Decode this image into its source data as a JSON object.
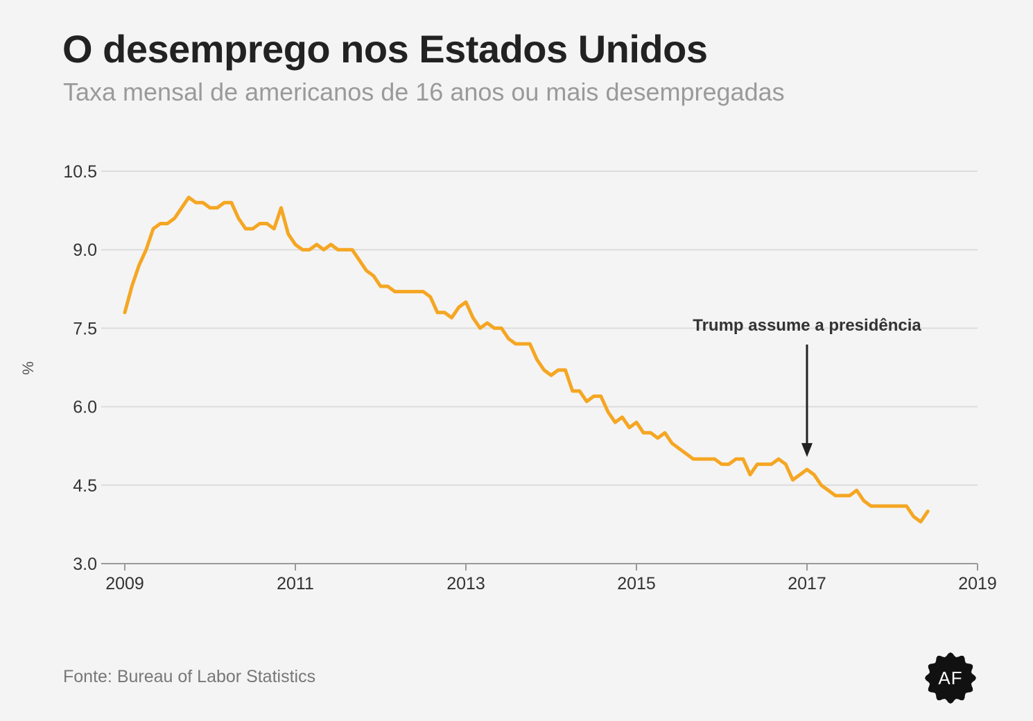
{
  "header": {
    "title": "O desemprego nos Estados Unidos",
    "subtitle": "Taxa mensal de americanos de 16 anos ou mais desempregadas"
  },
  "footer": {
    "source": "Fonte: Bureau of Labor Statistics",
    "logo_text": "AF"
  },
  "colors": {
    "line": "#f5a623",
    "grid": "#dcdcdc",
    "axis": "#999999",
    "annotation": "#222222",
    "background": "#f4f4f4"
  },
  "chart_data": {
    "type": "line",
    "title": "O desemprego nos Estados Unidos",
    "subtitle": "Taxa mensal de americanos de 16 anos ou mais desempregadas",
    "xlabel": "",
    "ylabel": "%",
    "xlim": [
      2009,
      2019
    ],
    "ylim": [
      3.0,
      10.5
    ],
    "x_ticks": [
      "2009",
      "2011",
      "2013",
      "2015",
      "2017",
      "2019"
    ],
    "y_ticks": [
      "3.0",
      "4.5",
      "6.0",
      "7.5",
      "9.0",
      "10.5"
    ],
    "grid": true,
    "legend": "none",
    "annotations": [
      {
        "text": "Trump assume a presidência",
        "x": "2017-01",
        "y": 4.8
      }
    ],
    "series": [
      {
        "x": [
          "2009-01",
          "2009-02",
          "2009-03",
          "2009-04",
          "2009-05",
          "2009-06",
          "2009-07",
          "2009-08",
          "2009-09",
          "2009-10",
          "2009-11",
          "2009-12",
          "2010-01",
          "2010-02",
          "2010-03",
          "2010-04",
          "2010-05",
          "2010-06",
          "2010-07",
          "2010-08",
          "2010-09",
          "2010-10",
          "2010-11",
          "2010-12",
          "2011-01",
          "2011-02",
          "2011-03",
          "2011-04",
          "2011-05",
          "2011-06",
          "2011-07",
          "2011-08",
          "2011-09",
          "2011-10",
          "2011-11",
          "2011-12",
          "2012-01",
          "2012-02",
          "2012-03",
          "2012-04",
          "2012-05",
          "2012-06",
          "2012-07",
          "2012-08",
          "2012-09",
          "2012-10",
          "2012-11",
          "2012-12",
          "2013-01",
          "2013-02",
          "2013-03",
          "2013-04",
          "2013-05",
          "2013-06",
          "2013-07",
          "2013-08",
          "2013-09",
          "2013-10",
          "2013-11",
          "2013-12",
          "2014-01",
          "2014-02",
          "2014-03",
          "2014-04",
          "2014-05",
          "2014-06",
          "2014-07",
          "2014-08",
          "2014-09",
          "2014-10",
          "2014-11",
          "2014-12",
          "2015-01",
          "2015-02",
          "2015-03",
          "2015-04",
          "2015-05",
          "2015-06",
          "2015-07",
          "2015-08",
          "2015-09",
          "2015-10",
          "2015-11",
          "2015-12",
          "2016-01",
          "2016-02",
          "2016-03",
          "2016-04",
          "2016-05",
          "2016-06",
          "2016-07",
          "2016-08",
          "2016-09",
          "2016-10",
          "2016-11",
          "2016-12",
          "2017-01",
          "2017-02",
          "2017-03",
          "2017-04",
          "2017-05",
          "2017-06",
          "2017-07",
          "2017-08",
          "2017-09",
          "2017-10",
          "2017-11",
          "2017-12",
          "2018-01",
          "2018-02",
          "2018-03",
          "2018-04",
          "2018-05",
          "2018-06"
        ],
        "values": [
          7.8,
          8.3,
          8.7,
          9.0,
          9.4,
          9.5,
          9.5,
          9.6,
          9.8,
          10.0,
          9.9,
          9.9,
          9.8,
          9.8,
          9.9,
          9.9,
          9.6,
          9.4,
          9.4,
          9.5,
          9.5,
          9.4,
          9.8,
          9.3,
          9.1,
          9.0,
          9.0,
          9.1,
          9.0,
          9.1,
          9.0,
          9.0,
          9.0,
          8.8,
          8.6,
          8.5,
          8.3,
          8.3,
          8.2,
          8.2,
          8.2,
          8.2,
          8.2,
          8.1,
          7.8,
          7.8,
          7.7,
          7.9,
          8.0,
          7.7,
          7.5,
          7.6,
          7.5,
          7.5,
          7.3,
          7.2,
          7.2,
          7.2,
          6.9,
          6.7,
          6.6,
          6.7,
          6.7,
          6.3,
          6.3,
          6.1,
          6.2,
          6.2,
          5.9,
          5.7,
          5.8,
          5.6,
          5.7,
          5.5,
          5.5,
          5.4,
          5.5,
          5.3,
          5.2,
          5.1,
          5.0,
          5.0,
          5.0,
          5.0,
          4.9,
          4.9,
          5.0,
          5.0,
          4.7,
          4.9,
          4.9,
          4.9,
          5.0,
          4.9,
          4.6,
          4.7,
          4.8,
          4.7,
          4.5,
          4.4,
          4.3,
          4.3,
          4.3,
          4.4,
          4.2,
          4.1,
          4.1,
          4.1,
          4.1,
          4.1,
          4.1,
          3.9,
          3.8,
          4.0
        ]
      }
    ]
  }
}
